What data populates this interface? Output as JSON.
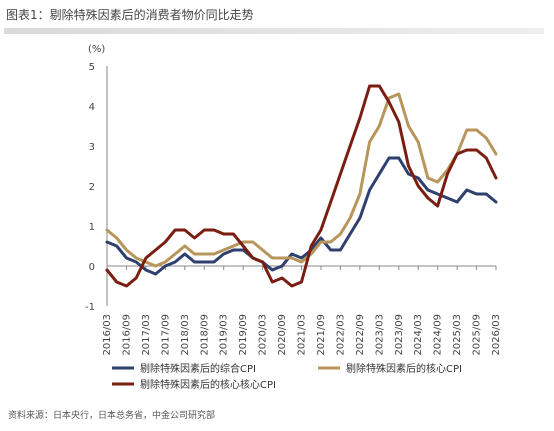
{
  "header": {
    "title": "图表1：剔除特殊因素后的消费者物价同比走势"
  },
  "footer": {
    "source": "资料来源：日本央行，日本总务省，中金公司研究部"
  },
  "chart_data": {
    "type": "line",
    "unit_label": "(%)",
    "ylim": [
      -1,
      5
    ],
    "yticks": [
      5,
      4,
      3,
      2,
      1,
      0,
      -1
    ],
    "x": [
      "2016/03",
      "2016/06",
      "2016/09",
      "2016/12",
      "2017/03",
      "2017/06",
      "2017/09",
      "2017/12",
      "2018/03",
      "2018/06",
      "2018/09",
      "2018/12",
      "2019/03",
      "2019/06",
      "2019/09",
      "2019/12",
      "2020/03",
      "2020/06",
      "2020/09",
      "2020/12",
      "2021/03",
      "2021/06",
      "2021/09",
      "2021/12",
      "2022/03",
      "2022/06",
      "2022/09",
      "2022/12",
      "2023/03",
      "2023/06",
      "2023/09",
      "2023/12",
      "2024/03",
      "2024/06",
      "2024/09",
      "2024/12",
      "2025/03",
      "2025/06",
      "2025/09",
      "2025/12",
      "2026/03"
    ],
    "x_tick_labels": [
      "2016/03",
      "2016/09",
      "2017/03",
      "2017/09",
      "2018/03",
      "2018/09",
      "2019/03",
      "2019/09",
      "2020/03",
      "2020/09",
      "2021/03",
      "2021/09",
      "2022/03",
      "2022/09",
      "2023/03",
      "2023/09",
      "2024/03",
      "2024/09",
      "2025/03",
      "2025/09",
      "2026/03"
    ],
    "series": [
      {
        "name": "剔除特殊因素后的综合CPI",
        "color": "#2f3f6e",
        "values": [
          0.6,
          0.5,
          0.2,
          0.1,
          -0.1,
          -0.2,
          0.0,
          0.1,
          0.3,
          0.1,
          0.1,
          0.1,
          0.3,
          0.4,
          0.4,
          0.2,
          0.1,
          -0.1,
          0.0,
          0.3,
          0.2,
          0.4,
          0.7,
          0.4,
          0.4,
          0.8,
          1.2,
          1.9,
          2.3,
          2.7,
          2.7,
          2.3,
          2.2,
          1.9,
          1.8,
          1.7,
          1.6,
          1.9,
          1.8,
          1.8,
          1.6
        ]
      },
      {
        "name": "剔除特殊因素后的核心CPI",
        "color": "#b8955a",
        "values": [
          0.9,
          0.7,
          0.4,
          0.2,
          0.1,
          0.0,
          0.1,
          0.3,
          0.5,
          0.3,
          0.3,
          0.3,
          0.4,
          0.5,
          0.6,
          0.6,
          0.4,
          0.2,
          0.2,
          0.2,
          0.1,
          0.3,
          0.6,
          0.6,
          0.8,
          1.2,
          1.8,
          3.1,
          3.5,
          4.2,
          4.3,
          3.5,
          3.1,
          2.2,
          2.1,
          2.4,
          2.8,
          3.4,
          3.4,
          3.2,
          2.8
        ]
      },
      {
        "name": "剔除特殊因素后的核心核心CPI",
        "color": "#7b1e12",
        "values": [
          -0.1,
          -0.4,
          -0.5,
          -0.3,
          0.2,
          0.4,
          0.6,
          0.9,
          0.9,
          0.7,
          0.9,
          0.9,
          0.8,
          0.8,
          0.5,
          0.2,
          0.1,
          -0.4,
          -0.3,
          -0.5,
          -0.4,
          0.5,
          0.9,
          1.6,
          2.3,
          3.0,
          3.7,
          4.5,
          4.5,
          4.1,
          3.6,
          2.5,
          2.0,
          1.7,
          1.5,
          2.3,
          2.8,
          2.9,
          2.9,
          2.7,
          2.2
        ]
      }
    ]
  }
}
